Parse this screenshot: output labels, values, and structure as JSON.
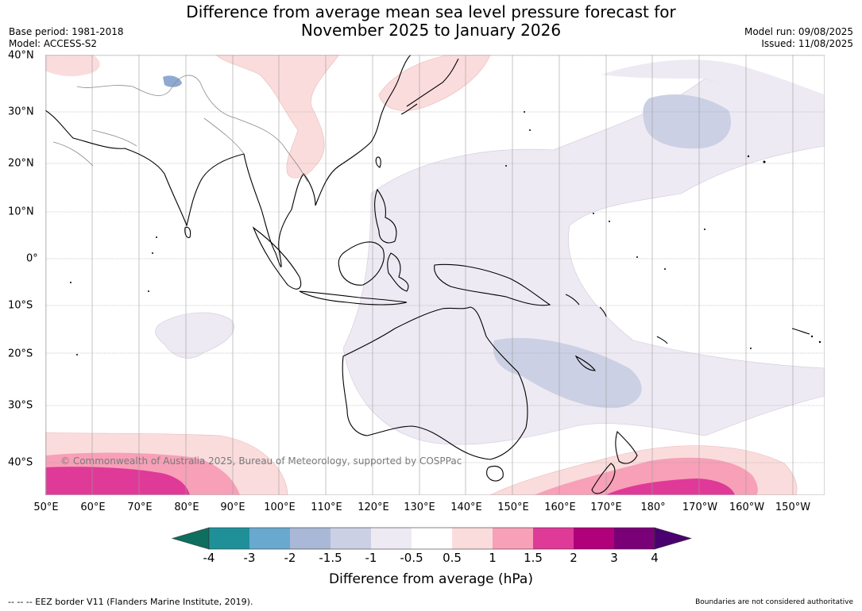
{
  "title_line1": "Difference from average mean sea level pressure forecast for",
  "title_line2": "November 2025 to January 2026",
  "meta_left": {
    "base_period": "Base period: 1981-2018",
    "model": "Model: ACCESS-S2"
  },
  "meta_right": {
    "model_run": "Model run: 09/08/2025",
    "issued": "Issued: 11/08/2025"
  },
  "x_ticks": [
    "50°E",
    "60°E",
    "70°E",
    "80°E",
    "90°E",
    "100°E",
    "110°E",
    "120°E",
    "130°E",
    "140°E",
    "150°E",
    "160°E",
    "170°E",
    "180°",
    "170°W",
    "160°W",
    "150°W"
  ],
  "y_ticks": [
    "40°N",
    "30°N",
    "20°N",
    "10°N",
    "0°",
    "10°S",
    "20°S",
    "30°S",
    "40°S"
  ],
  "copyright": "© Commonwealth of Australia 2025, Bureau of Meteorology, supported by COSPPac",
  "colorbar": {
    "labels": [
      "-4",
      "-3",
      "-2",
      "-1.5",
      "-1",
      "-0.5",
      "0.5",
      "1",
      "1.5",
      "2",
      "3",
      "4"
    ],
    "colors": [
      "#0f6f5f",
      "#1f9098",
      "#6aa9cf",
      "#a9b8d6",
      "#ccd0e4",
      "#eeeaf3",
      "#ffffff",
      "#fbdcdc",
      "#f7a0b8",
      "#df3a98",
      "#b0007a",
      "#7a0078",
      "#4a006e"
    ],
    "title": "Difference from average (hPa)"
  },
  "footer_left": "--  --  -- EEZ border V11 (Flanders Marine Institute, 2019).",
  "footer_right": "Boundaries are not considered authoritative"
}
